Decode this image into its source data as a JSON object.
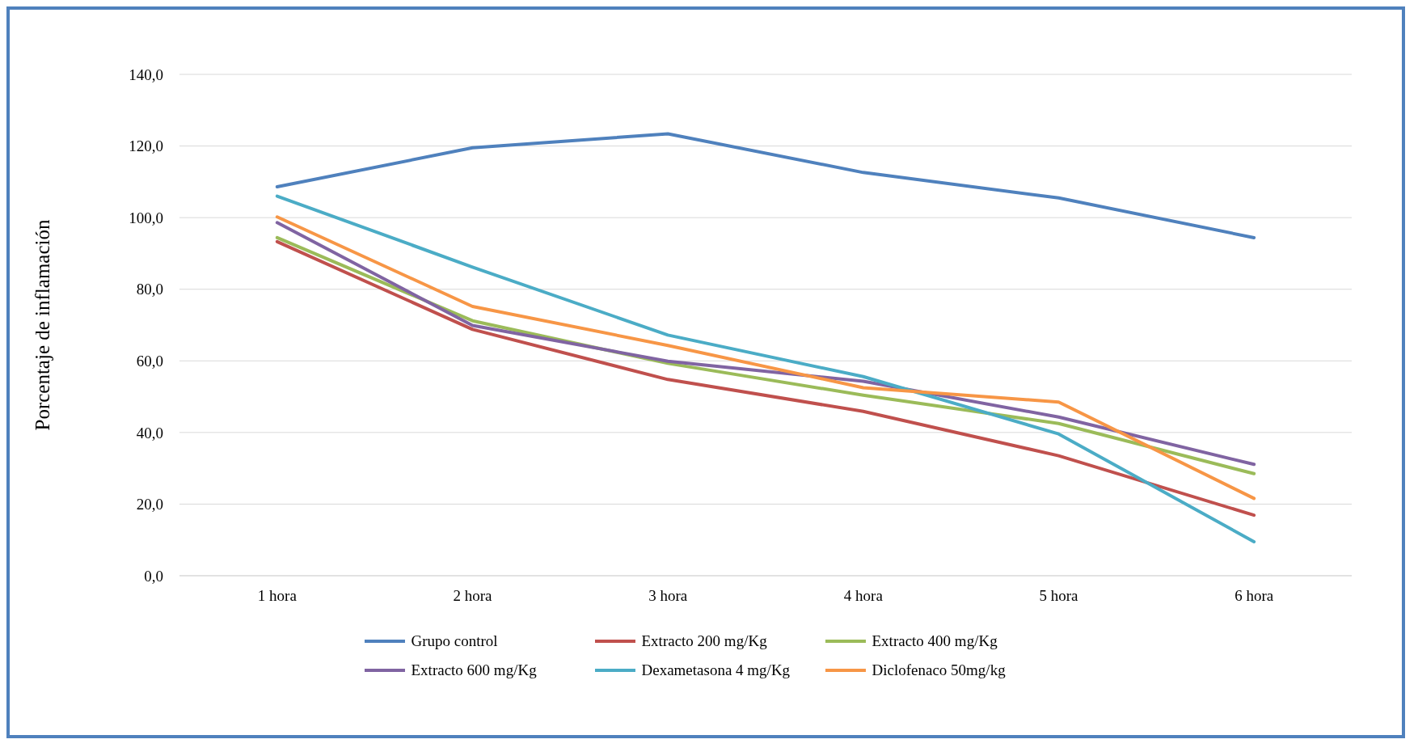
{
  "chart_data": {
    "type": "line",
    "ylabel": "Porcentaje de inflamación",
    "categories": [
      "1 hora",
      "2 hora",
      "3 hora",
      "4 hora",
      "5 hora",
      "6 hora"
    ],
    "series": [
      {
        "name": "Grupo control",
        "color": "#4f81bd",
        "values": [
          108.6,
          119.5,
          123.4,
          112.6,
          105.5,
          94.4
        ]
      },
      {
        "name": "Extracto 200 mg/Kg",
        "color": "#c0504d",
        "values": [
          93.3,
          68.8,
          54.8,
          45.9,
          33.5,
          16.9
        ]
      },
      {
        "name": "Extracto 400 mg/Kg",
        "color": "#9bbb59",
        "values": [
          94.4,
          71.2,
          59.3,
          50.4,
          42.5,
          28.5
        ]
      },
      {
        "name": "Extracto 600 mg/Kg",
        "color": "#8064a2",
        "values": [
          98.6,
          69.9,
          59.9,
          54.3,
          44.3,
          31.1
        ]
      },
      {
        "name": "Dexametasona 4 mg/Kg",
        "color": "#4bacc6",
        "values": [
          106.0,
          86.2,
          67.2,
          55.6,
          39.6,
          9.5
        ]
      },
      {
        "name": "Diclofenaco 50mg/kg",
        "color": "#f79646",
        "values": [
          100.2,
          75.2,
          64.3,
          52.5,
          48.5,
          21.6
        ]
      }
    ],
    "ylim": [
      0,
      140
    ],
    "yticks": [
      {
        "value": 0,
        "label": "0,0"
      },
      {
        "value": 20,
        "label": "20,0"
      },
      {
        "value": 40,
        "label": "40,0"
      },
      {
        "value": 60,
        "label": "60,0"
      },
      {
        "value": 80,
        "label": "80,0"
      },
      {
        "value": 100,
        "label": "100,0"
      },
      {
        "value": 120,
        "label": "120,0"
      },
      {
        "value": 140,
        "label": "140,0"
      }
    ],
    "grid": "y",
    "legend": "bottom",
    "marker": "none",
    "line_style": "solid"
  }
}
